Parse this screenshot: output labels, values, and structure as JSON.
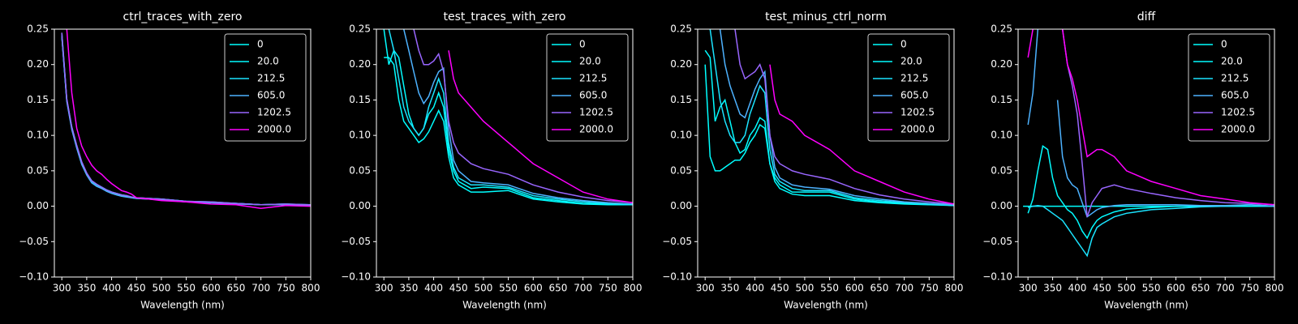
{
  "chart_data": [
    {
      "type": "line",
      "title": "ctrl_traces_with_zero",
      "xlabel": "Wavelength (nm)",
      "legend": "upper right",
      "xlim": [
        285,
        800
      ],
      "ylim": [
        -0.1,
        0.25
      ],
      "xticks": [
        300,
        350,
        400,
        450,
        500,
        550,
        600,
        650,
        700,
        750,
        800
      ],
      "yticks": [
        {
          "value": -0.1,
          "label": "−0.10"
        },
        {
          "value": -0.05,
          "label": "−0.05"
        },
        {
          "value": 0,
          "label": "0.00"
        },
        {
          "value": 0.05,
          "label": "0.05"
        },
        {
          "value": 0.1,
          "label": "0.10"
        },
        {
          "value": 0.15,
          "label": "0.15"
        },
        {
          "value": 0.2,
          "label": "0.20"
        },
        {
          "value": 0.25,
          "label": "0.25"
        }
      ],
      "x": [
        290,
        300,
        310,
        320,
        330,
        340,
        350,
        360,
        370,
        380,
        390,
        400,
        410,
        420,
        430,
        440,
        450,
        475,
        500,
        550,
        600,
        650,
        700,
        750,
        800
      ],
      "series": [
        {
          "name": "0",
          "color": "#00ffff",
          "values": [
            null,
            0.24,
            0.15,
            0.11,
            0.083,
            0.06,
            0.045,
            0.035,
            0.03,
            0.027,
            0.023,
            0.02,
            0.018,
            0.016,
            0.015,
            0.013,
            0.012,
            0.011,
            0.01,
            0.007,
            0.006,
            0.004,
            0.002,
            0.003,
            0.002
          ]
        },
        {
          "name": "20.0",
          "color": "#03fcff",
          "values": [
            null,
            0.24,
            0.15,
            0.11,
            0.084,
            0.061,
            0.046,
            0.036,
            0.031,
            0.027,
            0.023,
            0.02,
            0.018,
            0.016,
            0.014,
            0.013,
            0.012,
            0.011,
            0.01,
            0.007,
            0.005,
            0.004,
            0.002,
            0.003,
            0.001
          ]
        },
        {
          "name": "212.5",
          "color": "#1be4ff",
          "values": [
            null,
            0.245,
            0.15,
            0.112,
            0.085,
            0.062,
            0.046,
            0.035,
            0.03,
            0.026,
            0.022,
            0.019,
            0.017,
            0.015,
            0.014,
            0.012,
            0.011,
            0.01,
            0.009,
            0.006,
            0.005,
            0.004,
            0.002,
            0.002,
            0.001
          ]
        },
        {
          "name": "605.0",
          "color": "#4db2ff",
          "values": [
            null,
            0.24,
            0.148,
            0.108,
            0.082,
            0.059,
            0.044,
            0.033,
            0.028,
            0.025,
            0.021,
            0.018,
            0.016,
            0.014,
            0.013,
            0.012,
            0.011,
            0.01,
            0.009,
            0.006,
            0.005,
            0.003,
            0.002,
            0.002,
            0.001
          ]
        },
        {
          "name": "1202.5",
          "color": "#9966ff",
          "values": [
            null,
            0.245,
            0.152,
            0.112,
            0.086,
            0.063,
            0.047,
            0.036,
            0.031,
            0.027,
            0.023,
            0.02,
            0.018,
            0.016,
            0.015,
            0.013,
            0.012,
            0.011,
            0.01,
            0.007,
            0.006,
            0.004,
            0.002,
            0.003,
            0.002
          ]
        },
        {
          "name": "2000.0",
          "color": "#ff00ff",
          "values": [
            null,
            null,
            0.25,
            0.16,
            0.11,
            0.085,
            0.07,
            0.058,
            0.05,
            0.045,
            0.038,
            0.032,
            0.027,
            0.022,
            0.02,
            0.017,
            0.012,
            0.01,
            0.008,
            0.006,
            0.003,
            0.002,
            -0.003,
            0.001,
            0.0
          ]
        }
      ]
    },
    {
      "type": "line",
      "title": "test_traces_with_zero",
      "xlabel": "Wavelength (nm)",
      "legend": "upper right",
      "xlim": [
        285,
        800
      ],
      "ylim": [
        -0.1,
        0.25
      ],
      "xticks": [
        300,
        350,
        400,
        450,
        500,
        550,
        600,
        650,
        700,
        750,
        800
      ],
      "yticks": [
        {
          "value": -0.1,
          "label": "−0.10"
        },
        {
          "value": -0.05,
          "label": "−0.05"
        },
        {
          "value": 0,
          "label": "0.00"
        },
        {
          "value": 0.05,
          "label": "0.05"
        },
        {
          "value": 0.1,
          "label": "0.10"
        },
        {
          "value": 0.15,
          "label": "0.15"
        },
        {
          "value": 0.2,
          "label": "0.20"
        },
        {
          "value": 0.25,
          "label": "0.25"
        }
      ],
      "x": [
        290,
        300,
        310,
        320,
        330,
        340,
        350,
        360,
        370,
        380,
        390,
        400,
        410,
        420,
        430,
        440,
        450,
        475,
        500,
        550,
        600,
        650,
        700,
        750,
        800
      ],
      "series": [
        {
          "name": "0",
          "color": "#00ffff",
          "values": [
            null,
            0.21,
            0.21,
            0.2,
            0.15,
            0.12,
            0.11,
            0.1,
            0.09,
            0.095,
            0.105,
            0.12,
            0.135,
            0.12,
            0.07,
            0.04,
            0.03,
            0.02,
            0.02,
            0.022,
            0.01,
            0.006,
            0.003,
            0.002,
            0.002
          ]
        },
        {
          "name": "20.0",
          "color": "#03fcff",
          "values": [
            null,
            0.25,
            0.2,
            0.22,
            0.21,
            0.17,
            0.13,
            0.11,
            0.1,
            0.11,
            0.13,
            0.14,
            0.16,
            0.14,
            0.08,
            0.05,
            0.035,
            0.025,
            0.027,
            0.025,
            0.012,
            0.008,
            0.004,
            0.003,
            0.002
          ]
        },
        {
          "name": "212.5",
          "color": "#1be4ff",
          "values": [
            null,
            null,
            0.25,
            0.22,
            0.18,
            0.14,
            0.12,
            0.11,
            0.1,
            0.11,
            0.14,
            0.16,
            0.18,
            0.16,
            0.09,
            0.055,
            0.04,
            0.03,
            0.03,
            0.027,
            0.015,
            0.01,
            0.006,
            0.004,
            0.003
          ]
        },
        {
          "name": "605.0",
          "color": "#4db2ff",
          "values": [
            null,
            null,
            null,
            null,
            null,
            0.25,
            0.22,
            0.19,
            0.16,
            0.145,
            0.155,
            0.175,
            0.19,
            0.195,
            0.11,
            0.065,
            0.05,
            0.035,
            0.033,
            0.03,
            0.018,
            0.012,
            0.008,
            0.005,
            0.003
          ]
        },
        {
          "name": "1202.5",
          "color": "#9966ff",
          "values": [
            null,
            null,
            null,
            null,
            null,
            null,
            null,
            0.25,
            0.22,
            0.2,
            0.2,
            0.205,
            0.215,
            0.19,
            0.12,
            0.09,
            0.075,
            0.06,
            0.053,
            0.045,
            0.03,
            0.02,
            0.013,
            0.008,
            0.005
          ]
        },
        {
          "name": "2000.0",
          "color": "#ff00ff",
          "values": [
            null,
            null,
            null,
            null,
            null,
            null,
            null,
            null,
            null,
            null,
            null,
            null,
            null,
            null,
            0.22,
            0.18,
            0.16,
            0.14,
            0.12,
            0.09,
            0.06,
            0.04,
            0.02,
            0.01,
            0.005
          ]
        }
      ]
    },
    {
      "type": "line",
      "title": "test_minus_ctrl_norm",
      "xlabel": "Wavelength (nm)",
      "legend": "upper right",
      "xlim": [
        285,
        800
      ],
      "ylim": [
        -0.1,
        0.25
      ],
      "xticks": [
        300,
        350,
        400,
        450,
        500,
        550,
        600,
        650,
        700,
        750,
        800
      ],
      "yticks": [
        {
          "value": -0.1,
          "label": "−0.10"
        },
        {
          "value": -0.05,
          "label": "−0.05"
        },
        {
          "value": 0,
          "label": "0.00"
        },
        {
          "value": 0.05,
          "label": "0.05"
        },
        {
          "value": 0.1,
          "label": "0.10"
        },
        {
          "value": 0.15,
          "label": "0.15"
        },
        {
          "value": 0.2,
          "label": "0.20"
        },
        {
          "value": 0.25,
          "label": "0.25"
        }
      ],
      "x": [
        290,
        300,
        310,
        320,
        330,
        340,
        350,
        360,
        370,
        380,
        390,
        400,
        410,
        420,
        430,
        440,
        450,
        475,
        500,
        550,
        600,
        650,
        700,
        750,
        800
      ],
      "series": [
        {
          "name": "0",
          "color": "#00ffff",
          "values": [
            null,
            0.2,
            0.07,
            0.05,
            0.05,
            0.055,
            0.06,
            0.065,
            0.065,
            0.075,
            0.09,
            0.1,
            0.115,
            0.11,
            0.06,
            0.035,
            0.025,
            0.017,
            0.015,
            0.015,
            0.008,
            0.005,
            0.003,
            0.002,
            0.001
          ]
        },
        {
          "name": "20.0",
          "color": "#03fcff",
          "values": [
            null,
            0.22,
            0.21,
            0.12,
            0.14,
            0.15,
            0.12,
            0.09,
            0.075,
            0.08,
            0.1,
            0.11,
            0.125,
            0.12,
            0.06,
            0.04,
            0.03,
            0.02,
            0.02,
            0.02,
            0.01,
            0.006,
            0.004,
            0.003,
            0.001
          ]
        },
        {
          "name": "212.5",
          "color": "#1be4ff",
          "values": [
            null,
            null,
            0.25,
            0.2,
            0.15,
            0.12,
            0.1,
            0.09,
            0.09,
            0.1,
            0.13,
            0.15,
            0.17,
            0.16,
            0.08,
            0.045,
            0.035,
            0.025,
            0.022,
            0.022,
            0.012,
            0.008,
            0.005,
            0.003,
            0.001
          ]
        },
        {
          "name": "605.0",
          "color": "#4db2ff",
          "values": [
            null,
            null,
            null,
            null,
            0.25,
            0.2,
            0.17,
            0.15,
            0.13,
            0.125,
            0.145,
            0.165,
            0.18,
            0.19,
            0.1,
            0.055,
            0.04,
            0.03,
            0.027,
            0.024,
            0.015,
            0.01,
            0.006,
            0.004,
            0.002
          ]
        },
        {
          "name": "1202.5",
          "color": "#9966ff",
          "values": [
            null,
            null,
            null,
            null,
            null,
            null,
            null,
            0.25,
            0.2,
            0.18,
            0.185,
            0.19,
            0.2,
            0.18,
            0.1,
            0.07,
            0.06,
            0.05,
            0.045,
            0.038,
            0.025,
            0.016,
            0.01,
            0.006,
            0.003
          ]
        },
        {
          "name": "2000.0",
          "color": "#ff00ff",
          "values": [
            null,
            null,
            null,
            null,
            null,
            null,
            null,
            null,
            null,
            null,
            null,
            null,
            null,
            null,
            0.2,
            0.15,
            0.13,
            0.12,
            0.1,
            0.08,
            0.05,
            0.035,
            0.02,
            0.01,
            0.003
          ]
        }
      ]
    },
    {
      "type": "line",
      "title": "diff",
      "xlabel": "Wavelength (nm)",
      "legend": "upper right",
      "xlim": [
        280,
        800
      ],
      "ylim": [
        -0.1,
        0.25
      ],
      "xticks": [
        300,
        350,
        400,
        450,
        500,
        550,
        600,
        650,
        700,
        750,
        800
      ],
      "yticks": [
        {
          "value": -0.1,
          "label": "−0.10"
        },
        {
          "value": -0.05,
          "label": "−0.05"
        },
        {
          "value": 0,
          "label": "0.00"
        },
        {
          "value": 0.05,
          "label": "0.05"
        },
        {
          "value": 0.1,
          "label": "0.10"
        },
        {
          "value": 0.15,
          "label": "0.15"
        },
        {
          "value": 0.2,
          "label": "0.20"
        },
        {
          "value": 0.25,
          "label": "0.25"
        }
      ],
      "x": [
        290,
        300,
        310,
        320,
        330,
        340,
        350,
        360,
        370,
        380,
        390,
        400,
        410,
        420,
        430,
        440,
        450,
        475,
        500,
        550,
        600,
        650,
        700,
        750,
        800
      ],
      "series": [
        {
          "name": "0",
          "color": "#00ffff",
          "values": [
            0,
            0,
            0,
            0,
            0,
            0,
            0,
            0,
            0,
            0,
            0,
            0,
            0,
            0,
            0,
            0,
            0,
            0,
            0,
            0,
            0,
            0,
            0,
            0,
            0
          ]
        },
        {
          "name": "20.0",
          "color": "#03fcff",
          "values": [
            null,
            -0.01,
            0.01,
            0.05,
            0.085,
            0.08,
            0.04,
            0.015,
            0.005,
            -0.005,
            -0.01,
            -0.02,
            -0.035,
            -0.045,
            -0.03,
            -0.02,
            -0.015,
            -0.008,
            -0.004,
            -0.002,
            0,
            0,
            0,
            0,
            0
          ]
        },
        {
          "name": "212.5",
          "color": "#1be4ff",
          "values": [
            null,
            -0.002,
            0,
            0.001,
            0,
            -0.005,
            -0.01,
            -0.015,
            -0.02,
            -0.03,
            -0.04,
            -0.05,
            -0.06,
            -0.07,
            -0.045,
            -0.03,
            -0.025,
            -0.015,
            -0.01,
            -0.005,
            -0.003,
            -0.001,
            0,
            0.002,
            0
          ]
        },
        {
          "name": "605.0",
          "color": "#4db2ff",
          "values": [
            null,
            0.115,
            0.16,
            0.25,
            null,
            null,
            null,
            0.15,
            0.07,
            0.04,
            0.03,
            0.025,
            0.005,
            -0.015,
            -0.01,
            -0.005,
            -0.002,
            0.001,
            0.002,
            0.002,
            0.002,
            0.001,
            0.001,
            0.002,
            0
          ]
        },
        {
          "name": "1202.5",
          "color": "#9966ff",
          "values": [
            null,
            null,
            null,
            null,
            null,
            null,
            null,
            null,
            0.25,
            0.2,
            0.17,
            0.13,
            0.06,
            -0.015,
            0.005,
            0.015,
            0.025,
            0.03,
            0.025,
            0.018,
            0.012,
            0.008,
            0.005,
            0.004,
            0.002
          ]
        },
        {
          "name": "2000.0",
          "color": "#ff00ff",
          "values": [
            null,
            0.21,
            0.25,
            null,
            null,
            null,
            null,
            null,
            0.25,
            0.2,
            0.18,
            0.15,
            0.11,
            0.07,
            0.075,
            0.08,
            0.08,
            0.07,
            0.05,
            0.035,
            0.025,
            0.015,
            0.01,
            0.005,
            0.002
          ]
        }
      ]
    }
  ]
}
